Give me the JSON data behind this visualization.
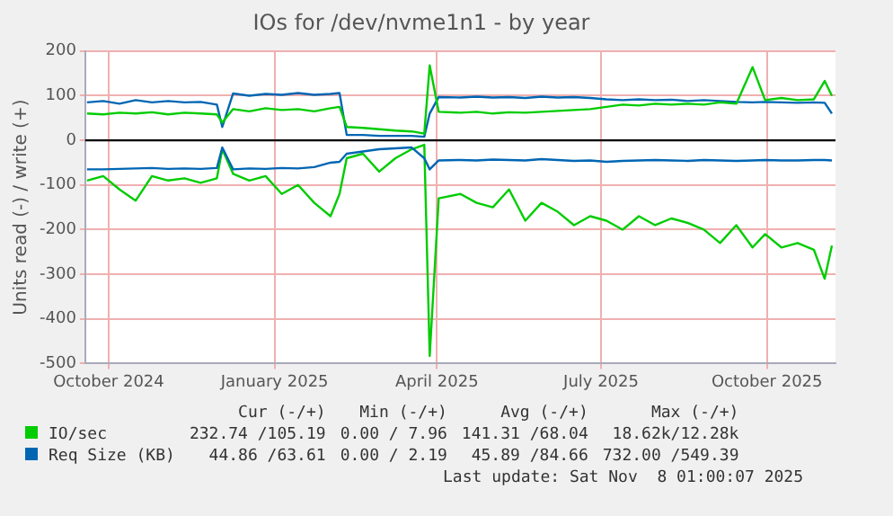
{
  "chart_data": {
    "type": "line",
    "title": "IOs for /dev/nvme1n1 - by year",
    "ylabel": "Units read (-) / write (+)",
    "x": [
      "2024-09-19",
      "2024-09-28",
      "2024-10-07",
      "2024-10-16",
      "2024-10-25",
      "2024-11-03",
      "2024-11-12",
      "2024-11-21",
      "2024-11-30",
      "2024-12-03",
      "2024-12-09",
      "2024-12-18",
      "2024-12-27",
      "2025-01-05",
      "2025-01-14",
      "2025-01-23",
      "2025-02-01",
      "2025-02-06",
      "2025-02-10",
      "2025-02-19",
      "2025-02-28",
      "2025-03-09",
      "2025-03-18",
      "2025-03-25",
      "2025-03-28",
      "2025-04-02",
      "2025-04-14",
      "2025-04-23",
      "2025-05-02",
      "2025-05-11",
      "2025-05-20",
      "2025-05-29",
      "2025-06-07",
      "2025-06-16",
      "2025-06-25",
      "2025-07-04",
      "2025-07-13",
      "2025-07-22",
      "2025-07-31",
      "2025-08-09",
      "2025-08-18",
      "2025-08-27",
      "2025-09-05",
      "2025-09-14",
      "2025-09-23",
      "2025-09-30",
      "2025-10-09",
      "2025-10-18",
      "2025-10-27",
      "2025-11-02",
      "2025-11-06"
    ],
    "series": [
      {
        "name": "IO/sec",
        "color": "#00cc00",
        "values": [
          60,
          58,
          62,
          60,
          63,
          58,
          62,
          60,
          58,
          40,
          70,
          65,
          72,
          68,
          70,
          65,
          72,
          75,
          30,
          28,
          25,
          22,
          20,
          15,
          168,
          64,
          62,
          64,
          60,
          63,
          62,
          64,
          66,
          68,
          70,
          75,
          80,
          78,
          82,
          80,
          82,
          80,
          85,
          82,
          164,
          90,
          95,
          90,
          92,
          133,
          100
        ]
      },
      {
        "name": "Req Size (KB)",
        "color": "#0066b3",
        "values": [
          85,
          88,
          82,
          90,
          85,
          88,
          85,
          86,
          80,
          30,
          105,
          100,
          104,
          102,
          106,
          102,
          104,
          106,
          12,
          12,
          10,
          10,
          10,
          8,
          60,
          97,
          96,
          98,
          96,
          97,
          95,
          98,
          96,
          97,
          95,
          92,
          90,
          92,
          90,
          91,
          88,
          90,
          88,
          86,
          85,
          86,
          85,
          84,
          85,
          84,
          60
        ]
      },
      {
        "color": "#0066b3",
        "values": [
          -65,
          -65,
          -64,
          -63,
          -62,
          -64,
          -63,
          -64,
          -62,
          -16,
          -65,
          -63,
          -64,
          -62,
          -63,
          -60,
          -50,
          -48,
          -30,
          -25,
          -20,
          -18,
          -16,
          -40,
          -65,
          -45,
          -44,
          -45,
          -43,
          -44,
          -45,
          -42,
          -44,
          -46,
          -45,
          -48,
          -46,
          -45,
          -44,
          -45,
          -46,
          -44,
          -45,
          -46,
          -45,
          -44,
          -45,
          -45,
          -44,
          -44,
          -45
        ]
      },
      {
        "color": "#00cc00",
        "values": [
          -90,
          -80,
          -110,
          -135,
          -80,
          -90,
          -85,
          -95,
          -85,
          -20,
          -75,
          -90,
          -80,
          -120,
          -100,
          -140,
          -170,
          -120,
          -40,
          -30,
          -70,
          -40,
          -20,
          -10,
          -483,
          -130,
          -120,
          -140,
          -150,
          -110,
          -180,
          -140,
          -160,
          -190,
          -170,
          -180,
          -200,
          -170,
          -190,
          -175,
          -185,
          -200,
          -230,
          -190,
          -240,
          -210,
          -240,
          -230,
          -245,
          -310,
          -236
        ]
      }
    ],
    "xlim": [
      "2024-09-18",
      "2025-11-08"
    ],
    "xticks": [
      {
        "value": "2024-10-01",
        "label": "October 2024"
      },
      {
        "value": "2025-01-01",
        "label": "January 2025"
      },
      {
        "value": "2025-04-01",
        "label": "April 2025"
      },
      {
        "value": "2025-07-01",
        "label": "July 2025"
      },
      {
        "value": "2025-10-01",
        "label": "October 2025"
      }
    ],
    "ylim": [
      -500,
      200
    ],
    "yticks": [
      -500,
      -400,
      -300,
      -200,
      -100,
      0,
      100,
      200
    ],
    "ref_lines": [
      {
        "axis": "y",
        "value": 0,
        "color": "#000000"
      }
    ],
    "grid": true,
    "legend": "bottom",
    "annotations": [
      "Cur (-/+)",
      "Min (-/+)",
      "Avg (-/+)",
      "Max (-/+)",
      "232.74 /105.19",
      "0.00 / 7.96",
      "141.31 /68.04",
      "18.62k/12.28k",
      "44.86 /63.61",
      "0.00 / 2.19",
      "45.89 /84.66",
      "732.00 /549.39",
      "Last update: Sat Nov  8 01:00:07 2025"
    ]
  }
}
